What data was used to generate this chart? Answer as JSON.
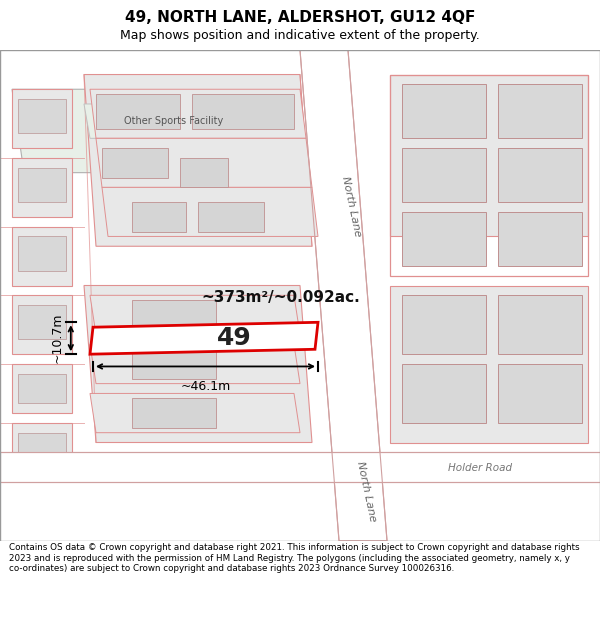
{
  "title": "49, NORTH LANE, ALDERSHOT, GU12 4QF",
  "subtitle": "Map shows position and indicative extent of the property.",
  "footer": "Contains OS data © Crown copyright and database right 2021. This information is subject to Crown copyright and database rights 2023 and is reproduced with the permission of HM Land Registry. The polygons (including the associated geometry, namely x, y co-ordinates) are subject to Crown copyright and database rights 2023 Ordnance Survey 100026316.",
  "map_bg": "#ffffff",
  "parcel_fill": "#e8e8e8",
  "parcel_outline": "#e09090",
  "sports_fill": "#e8f0e8",
  "sports_outline": "#c0c0c0",
  "highlight_fill": "#ffffff",
  "highlight_outline": "#dd0000",
  "road_label_1": "North Lane",
  "road_label_2": "North Lane",
  "road_label_3": "Holder Road",
  "area_label": "~373m²/~0.092ac.",
  "number_label": "49",
  "dim_width": "~46.1m",
  "dim_height": "~10.7m",
  "sports_label": "Other Sports Facility",
  "title_fontsize": 11,
  "subtitle_fontsize": 9
}
